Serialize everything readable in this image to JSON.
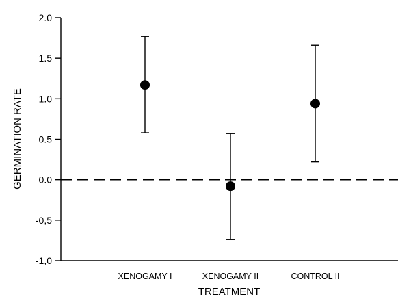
{
  "chart_data": {
    "type": "scatter",
    "title": "",
    "xlabel": "TREATMENT",
    "ylabel": "GERMINATION RATE",
    "categories": [
      "XENOGAMY I",
      "XENOGAMY II",
      "CONTROL II"
    ],
    "values": [
      1.17,
      -0.08,
      0.94
    ],
    "error_low": [
      0.58,
      -0.74,
      0.22
    ],
    "error_high": [
      1.77,
      0.57,
      1.66
    ],
    "ylim": [
      -1.0,
      2.0
    ],
    "y_ticks": [
      2.0,
      1.5,
      1.0,
      0.5,
      0.0,
      -0.5,
      -1.0
    ],
    "y_tick_labels": [
      "2.0",
      "1.5",
      "1.0",
      "0.5",
      "0.0",
      "-0,5",
      "-1,0"
    ],
    "reference_line": {
      "y": 0.0,
      "style": "dashed"
    },
    "grid": false,
    "legend": "none"
  }
}
